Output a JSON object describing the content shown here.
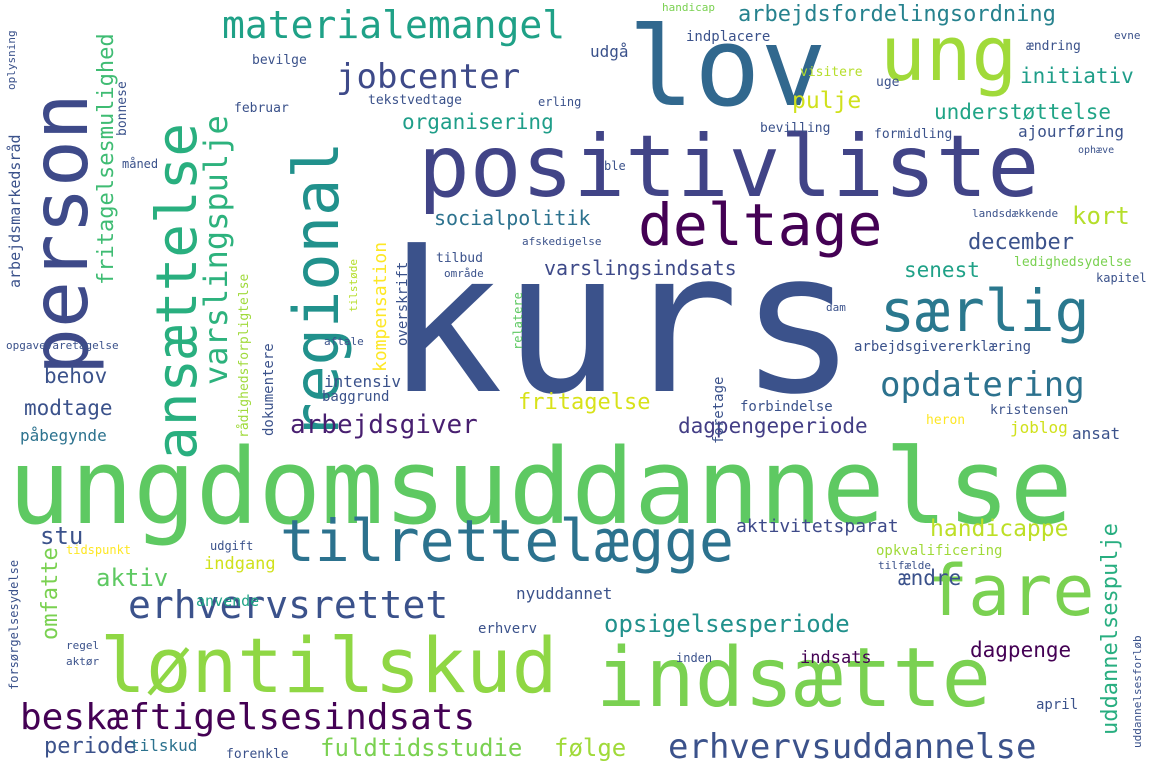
{
  "words": [
    {
      "text": "kurs",
      "color": "#3b528b"
    },
    {
      "text": "ungdomsuddannelse",
      "color": "#5ec962"
    },
    {
      "text": "positivliste",
      "color": "#414487"
    },
    {
      "text": "lov",
      "color": "#31688e"
    },
    {
      "text": "person",
      "color": "#3e4a89"
    },
    {
      "text": "ung",
      "color": "#a0da39"
    },
    {
      "text": "indsætte",
      "color": "#7ad151"
    },
    {
      "text": "løntilskud",
      "color": "#8fd744"
    },
    {
      "text": "tilrettelægge",
      "color": "#2c728e"
    },
    {
      "text": "fare",
      "color": "#7ad151"
    },
    {
      "text": "deltage",
      "color": "#440154"
    },
    {
      "text": "særlig",
      "color": "#2a788e"
    },
    {
      "text": "ansættelse",
      "color": "#29af7f"
    },
    {
      "text": "regional",
      "color": "#21918c"
    },
    {
      "text": "beskæftigelsesindsats",
      "color": "#440154"
    },
    {
      "text": "erhvervsrettet",
      "color": "#3b528b"
    },
    {
      "text": "erhvervsuddannelse",
      "color": "#3b528b"
    },
    {
      "text": "materialemangel",
      "color": "#1fa187"
    },
    {
      "text": "jobcenter",
      "color": "#3e4a89"
    },
    {
      "text": "opdatering",
      "color": "#2c728e"
    },
    {
      "text": "varslingspulje",
      "color": "#2db27d"
    },
    {
      "text": "arbejdsfordelingsordning",
      "color": "#26828e"
    },
    {
      "text": "arbejdsgiver",
      "color": "#481f70"
    },
    {
      "text": "opsigelsesperiode",
      "color": "#21918c"
    },
    {
      "text": "fritagelsesmulighed",
      "color": "#3fbc73"
    },
    {
      "text": "uddannelsespulje",
      "color": "#28ae80"
    },
    {
      "text": "dagpengeperiode",
      "color": "#433e85"
    },
    {
      "text": "varslingsindsats",
      "color": "#3e4a89"
    },
    {
      "text": "socialpolitik",
      "color": "#2c728e"
    },
    {
      "text": "understøttelse",
      "color": "#20a486"
    },
    {
      "text": "organisering",
      "color": "#1f9e89"
    },
    {
      "text": "initiativ",
      "color": "#1f9e89"
    },
    {
      "text": "pulje",
      "color": "#d0e11c"
    },
    {
      "text": "kort",
      "color": "#b5de2b"
    },
    {
      "text": "december",
      "color": "#3b528b"
    },
    {
      "text": "senest",
      "color": "#1fa187"
    },
    {
      "text": "handicappe",
      "color": "#bddf26"
    },
    {
      "text": "aktivitetsparat",
      "color": "#3e4a89"
    },
    {
      "text": "fritagelse",
      "color": "#d8e219"
    },
    {
      "text": "kompensation",
      "color": "#fde725"
    },
    {
      "text": "fuldtidsstudie",
      "color": "#7ad151"
    },
    {
      "text": "følge",
      "color": "#a0da39"
    },
    {
      "text": "periode",
      "color": "#3b528b"
    },
    {
      "text": "tilskud",
      "color": "#2c728e"
    },
    {
      "text": "omfatte",
      "color": "#7ad151"
    },
    {
      "text": "aktiv",
      "color": "#5ec962"
    },
    {
      "text": "stu",
      "color": "#3b528b"
    },
    {
      "text": "behov",
      "color": "#3b528b"
    },
    {
      "text": "modtage",
      "color": "#3b528b"
    },
    {
      "text": "påbegynde",
      "color": "#2c728e"
    },
    {
      "text": "ændre",
      "color": "#3b528b"
    },
    {
      "text": "dagpenge",
      "color": "#440154"
    },
    {
      "text": "indsats",
      "color": "#440154"
    },
    {
      "text": "indgang",
      "color": "#d0e11c"
    },
    {
      "text": "anvende",
      "color": "#20a486"
    },
    {
      "text": "nyuddannet",
      "color": "#3b528b"
    },
    {
      "text": "erhverv",
      "color": "#3b528b"
    },
    {
      "text": "intensiv",
      "color": "#3b528b"
    },
    {
      "text": "baggrund",
      "color": "#3b528b"
    },
    {
      "text": "forbindelse",
      "color": "#3b528b"
    },
    {
      "text": "kristensen",
      "color": "#3b528b"
    },
    {
      "text": "ansat",
      "color": "#3b528b"
    },
    {
      "text": "joblog",
      "color": "#d0e11c"
    },
    {
      "text": "heron",
      "color": "#fde725"
    },
    {
      "text": "dokumentere",
      "color": "#3b528b"
    },
    {
      "text": "rådighedsforpligtelse",
      "color": "#9fda3a"
    },
    {
      "text": "tilstøde",
      "color": "#b5de2b"
    },
    {
      "text": "overskrift",
      "color": "#3b528b"
    },
    {
      "text": "foretage",
      "color": "#3b528b"
    },
    {
      "text": "ajourføring",
      "color": "#3b528b"
    },
    {
      "text": "bevilling",
      "color": "#3b528b"
    },
    {
      "text": "formidling",
      "color": "#3b528b"
    },
    {
      "text": "ændring",
      "color": "#3b528b"
    },
    {
      "text": "uge",
      "color": "#3b528b"
    },
    {
      "text": "visitere",
      "color": "#b5de2b"
    },
    {
      "text": "udgå",
      "color": "#3b528b"
    },
    {
      "text": "indplacere",
      "color": "#3b528b"
    },
    {
      "text": "bevilge",
      "color": "#3b528b"
    },
    {
      "text": "tekstvedtage",
      "color": "#3b528b"
    },
    {
      "text": "erling",
      "color": "#3b528b"
    },
    {
      "text": "februar",
      "color": "#3b528b"
    },
    {
      "text": "måned",
      "color": "#3b528b"
    },
    {
      "text": "bonnese",
      "color": "#3b528b"
    },
    {
      "text": "arbejdsmarkedsråd",
      "color": "#3b528b"
    },
    {
      "text": "handicap",
      "color": "#7ad151"
    },
    {
      "text": "landsdækkende",
      "color": "#3b528b"
    },
    {
      "text": "ledighedsydelse",
      "color": "#7ad151"
    },
    {
      "text": "kapitel",
      "color": "#3b528b"
    },
    {
      "text": "arbejdsgivererklæring",
      "color": "#3b528b"
    },
    {
      "text": "opgavevaretagelse",
      "color": "#3b528b"
    },
    {
      "text": "forsørgelsesydelse",
      "color": "#3b528b"
    },
    {
      "text": "tidspunkt",
      "color": "#fde725"
    },
    {
      "text": "udgift",
      "color": "#3b528b"
    },
    {
      "text": "tilbud",
      "color": "#3b528b"
    },
    {
      "text": "område",
      "color": "#3b528b"
    },
    {
      "text": "afskedigelse",
      "color": "#3b528b"
    },
    {
      "text": "relatere",
      "color": "#5ec962"
    },
    {
      "text": "aftale",
      "color": "#3b528b"
    },
    {
      "text": "dam",
      "color": "#3b528b"
    },
    {
      "text": "ble",
      "color": "#3b528b"
    },
    {
      "text": "april",
      "color": "#3b528b"
    },
    {
      "text": "opkvalificering",
      "color": "#a0da39"
    },
    {
      "text": "tilfælde",
      "color": "#3b528b"
    },
    {
      "text": "uddannelsesforløb",
      "color": "#3b528b"
    },
    {
      "text": "inden",
      "color": "#3b528b"
    },
    {
      "text": "forenkle",
      "color": "#3b528b"
    },
    {
      "text": "regel",
      "color": "#3b528b"
    },
    {
      "text": "aktør",
      "color": "#3b528b"
    },
    {
      "text": "ophæve",
      "color": "#3b528b"
    },
    {
      "text": "evne",
      "color": "#3b528b"
    },
    {
      "text": "oplysning",
      "color": "#3b528b"
    }
  ]
}
